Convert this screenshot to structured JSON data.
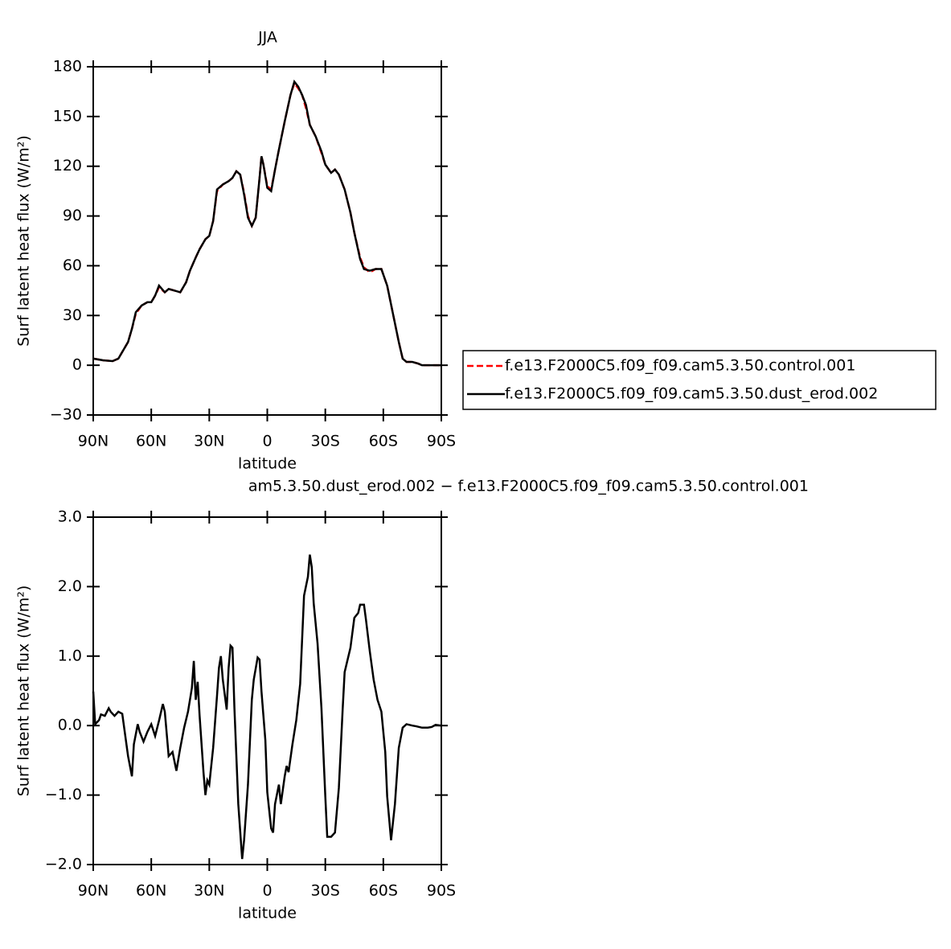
{
  "chart_data": [
    {
      "type": "line",
      "title": "JJA",
      "xlabel": "latitude",
      "ylabel": "Surf latent heat flux (W/m²)",
      "xlim": [
        90,
        -90
      ],
      "xticks": [
        {
          "value": 90,
          "label": "90N"
        },
        {
          "value": 60,
          "label": "60N"
        },
        {
          "value": 30,
          "label": "30N"
        },
        0,
        {
          "value": -30,
          "label": "30S"
        },
        {
          "value": -60,
          "label": "60S"
        },
        {
          "value": -90,
          "label": "90S"
        }
      ],
      "ylim": [
        -30,
        180
      ],
      "yticks": [
        {
          "value": -30,
          "label": "−30"
        },
        0,
        30,
        60,
        90,
        120,
        150,
        180
      ],
      "legend": true,
      "x": [
        90,
        85,
        80,
        77,
        75,
        72,
        70,
        68,
        65,
        62,
        60,
        58,
        56,
        53,
        51,
        48,
        45,
        42,
        40,
        37,
        35,
        32,
        30,
        28,
        26,
        23,
        20,
        18,
        16,
        14,
        12,
        10,
        8,
        6,
        4,
        3,
        2,
        0,
        -2,
        -4,
        -6,
        -9,
        -12,
        -14,
        -16,
        -18,
        -20,
        -22,
        -25,
        -28,
        -30,
        -33,
        -35,
        -37,
        -40,
        -43,
        -45,
        -48,
        -50,
        -53,
        -56,
        -59,
        -62,
        -65,
        -68,
        -70,
        -72,
        -75,
        -78,
        -80,
        -85,
        -90
      ],
      "series": [
        {
          "name": "f.e13.F2000C5.f09_f09.cam5.3.50.control.001",
          "color": "#ff0000",
          "dashed": true,
          "values": [
            4,
            3,
            2.5,
            4,
            8,
            14,
            22,
            31,
            36,
            38,
            38,
            42,
            47,
            44,
            46,
            45,
            44,
            50,
            57,
            65,
            70,
            76,
            78,
            87,
            105,
            109,
            111,
            113,
            117,
            115,
            104,
            90,
            84,
            89,
            113,
            126,
            121,
            108,
            106,
            118,
            130,
            147,
            163,
            170,
            167,
            163,
            155,
            145,
            138,
            128,
            121,
            116,
            118,
            115,
            106,
            92,
            80,
            65,
            59,
            56,
            58,
            58,
            48,
            31,
            14,
            4,
            2,
            2,
            1,
            0,
            0,
            0
          ]
        },
        {
          "name": "f.e13.F2000C5.f09_f09.cam5.3.50.dust_erod.002",
          "color": "#000000",
          "dashed": false,
          "values": [
            4,
            3,
            2.5,
            4,
            8,
            14,
            22,
            32,
            36,
            38,
            38,
            42,
            48,
            44,
            46,
            45,
            44,
            50,
            57,
            65,
            70,
            76,
            78,
            87,
            106,
            109,
            111,
            113,
            117,
            115,
            103,
            89,
            84,
            89,
            113,
            126,
            121,
            107,
            105,
            118,
            130,
            147,
            163,
            171,
            168,
            163,
            157,
            145,
            138,
            129,
            121,
            116,
            118,
            115,
            106,
            92,
            80,
            64,
            58,
            57,
            58,
            58,
            48,
            31,
            14,
            4,
            2,
            2,
            1,
            0,
            0,
            0
          ]
        }
      ]
    },
    {
      "type": "line",
      "title": "am5.3.50.dust_erod.002 − f.e13.F2000C5.f09_f09.cam5.3.50.control.001",
      "xlabel": "latitude",
      "ylabel": "Surf latent heat flux (W/m²)",
      "xlim": [
        90,
        -90
      ],
      "xticks": [
        {
          "value": 90,
          "label": "90N"
        },
        {
          "value": 60,
          "label": "60N"
        },
        {
          "value": 30,
          "label": "30N"
        },
        0,
        {
          "value": -30,
          "label": "30S"
        },
        {
          "value": -60,
          "label": "60S"
        },
        {
          "value": -90,
          "label": "90S"
        }
      ],
      "ylim": [
        -2,
        3
      ],
      "yticks": [
        {
          "value": -2,
          "label": "−2.0"
        },
        {
          "value": -1,
          "label": "−1.0"
        },
        {
          "value": 0,
          "label": "0.0"
        },
        {
          "value": 1,
          "label": "1.0"
        },
        {
          "value": 2,
          "label": "2.0"
        },
        {
          "value": 3,
          "label": "3.0"
        }
      ],
      "legend": false,
      "x": [
        90,
        89,
        87,
        86,
        84,
        82,
        81,
        79,
        77,
        75,
        72,
        70,
        69,
        67,
        66,
        64,
        62,
        60,
        58,
        56,
        54,
        53,
        51,
        49,
        47,
        45,
        43,
        41,
        39,
        38,
        37,
        36,
        35,
        33,
        32,
        31,
        30,
        28,
        26,
        25,
        24,
        23,
        21,
        20,
        19,
        18,
        17,
        15,
        13,
        12,
        10,
        8,
        7,
        5,
        4,
        3,
        1,
        0,
        -2,
        -3,
        -4,
        -6,
        -7,
        -9,
        -10,
        -11,
        -13,
        -15,
        -17,
        -19,
        -21,
        -22,
        -23,
        -24,
        -26,
        -28,
        -30,
        -31,
        -33,
        -35,
        -37,
        -39,
        -40,
        -43,
        -45,
        -47,
        -48,
        -50,
        -51,
        -53,
        -55,
        -57,
        -59,
        -61,
        -62,
        -64,
        -66,
        -68,
        -70,
        -72,
        -75,
        -77,
        -80,
        -83,
        -85,
        -87,
        -90
      ],
      "series": [
        {
          "color": "#000000",
          "dashed": false,
          "values": [
            0.49,
            0.02,
            0.08,
            0.16,
            0.14,
            0.25,
            0.2,
            0.14,
            0.2,
            0.17,
            -0.44,
            -0.73,
            -0.27,
            0.02,
            -0.09,
            -0.23,
            -0.09,
            0.02,
            -0.15,
            0.07,
            0.31,
            0.2,
            -0.44,
            -0.38,
            -0.65,
            -0.32,
            -0.03,
            0.2,
            0.54,
            0.93,
            0.37,
            0.63,
            0.14,
            -0.67,
            -1.0,
            -0.79,
            -0.85,
            -0.32,
            0.43,
            0.83,
            1.0,
            0.66,
            0.23,
            0.83,
            1.15,
            1.12,
            0.25,
            -1.13,
            -1.92,
            -1.65,
            -0.85,
            0.37,
            0.66,
            0.98,
            0.95,
            0.49,
            -0.21,
            -0.96,
            -1.48,
            -1.54,
            -1.13,
            -0.85,
            -1.13,
            -0.73,
            -0.58,
            -0.67,
            -0.27,
            0.08,
            0.6,
            1.87,
            2.14,
            2.46,
            2.28,
            1.76,
            1.18,
            0.25,
            -1.02,
            -1.6,
            -1.6,
            -1.54,
            -0.9,
            0.25,
            0.77,
            1.12,
            1.55,
            1.62,
            1.74,
            1.74,
            1.53,
            1.07,
            0.66,
            0.37,
            0.2,
            -0.38,
            -1.02,
            -1.65,
            -1.13,
            -0.32,
            -0.03,
            0.02,
            0,
            -0.01,
            -0.03,
            -0.03,
            -0.02,
            0.01,
            0
          ]
        }
      ]
    }
  ]
}
